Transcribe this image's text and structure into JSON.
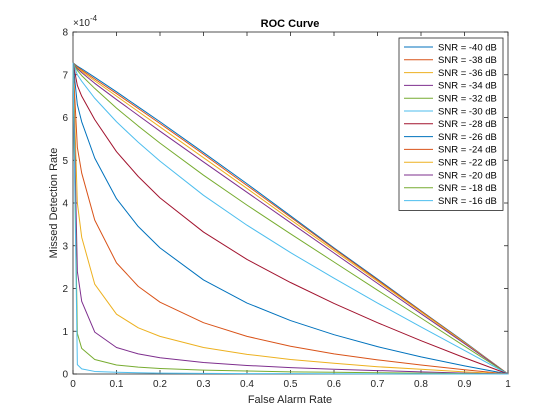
{
  "chart_data": {
    "type": "line",
    "title": "ROC Curve",
    "xlabel": "False Alarm Rate",
    "ylabel": "Missed Detection Rate",
    "y_exponent_label": "×10",
    "y_exponent_power": "-4",
    "xlim": [
      0,
      1
    ],
    "ylim": [
      0,
      8
    ],
    "x_ticks": [
      "0",
      "0.1",
      "0.2",
      "0.3",
      "0.4",
      "0.5",
      "0.6",
      "0.7",
      "0.8",
      "0.9",
      "1"
    ],
    "y_ticks": [
      "0",
      "1",
      "2",
      "3",
      "4",
      "5",
      "6",
      "7",
      "8"
    ],
    "grid": false,
    "legend_position": "top-right",
    "y_scale_note": "y values are in units of 1e-4",
    "x": [
      0,
      0.01,
      0.02,
      0.05,
      0.1,
      0.15,
      0.2,
      0.3,
      0.4,
      0.5,
      0.6,
      0.7,
      0.8,
      0.9,
      1.0
    ],
    "series": [
      {
        "name": "SNR = -40 dB",
        "color": "#0072BD",
        "values": [
          7.28,
          7.2,
          7.14,
          6.94,
          6.6,
          6.25,
          5.9,
          5.18,
          4.45,
          3.7,
          2.95,
          2.22,
          1.48,
          0.75,
          0.0
        ]
      },
      {
        "name": "SNR = -38 dB",
        "color": "#D95319",
        "values": [
          7.28,
          7.18,
          7.11,
          6.9,
          6.56,
          6.21,
          5.86,
          5.14,
          4.41,
          3.67,
          2.93,
          2.2,
          1.47,
          0.74,
          0.0
        ]
      },
      {
        "name": "SNR = -36 dB",
        "color": "#EDB120",
        "values": [
          7.28,
          7.16,
          7.08,
          6.86,
          6.5,
          6.14,
          5.78,
          5.06,
          4.34,
          3.61,
          2.89,
          2.17,
          1.45,
          0.73,
          0.0
        ]
      },
      {
        "name": "SNR = -34 dB",
        "color": "#7E2F8E",
        "values": [
          7.28,
          7.14,
          7.05,
          6.8,
          6.42,
          6.05,
          5.68,
          4.96,
          4.25,
          3.54,
          2.83,
          2.12,
          1.41,
          0.71,
          0.0
        ]
      },
      {
        "name": "SNR = -32 dB",
        "color": "#77AC30",
        "values": [
          7.28,
          7.1,
          6.98,
          6.68,
          6.22,
          5.8,
          5.4,
          4.65,
          3.95,
          3.28,
          2.62,
          1.96,
          1.31,
          0.65,
          0.0
        ]
      },
      {
        "name": "SNR = -30 dB",
        "color": "#4DBEEE",
        "values": [
          7.28,
          7.0,
          6.85,
          6.45,
          5.9,
          5.42,
          4.98,
          4.18,
          3.48,
          2.84,
          2.24,
          1.66,
          1.1,
          0.55,
          0.0
        ]
      },
      {
        "name": "SNR = -28 dB",
        "color": "#A2142F",
        "values": [
          7.28,
          6.75,
          6.5,
          5.95,
          5.2,
          4.62,
          4.12,
          3.32,
          2.68,
          2.14,
          1.65,
          1.2,
          0.78,
          0.38,
          0.0
        ]
      },
      {
        "name": "SNR = -26 dB",
        "color": "#0072BD",
        "values": [
          7.28,
          6.3,
          5.9,
          5.05,
          4.1,
          3.45,
          2.95,
          2.2,
          1.66,
          1.25,
          0.92,
          0.64,
          0.4,
          0.19,
          0.0
        ]
      },
      {
        "name": "SNR = -24 dB",
        "color": "#D95319",
        "values": [
          7.28,
          5.3,
          4.7,
          3.6,
          2.6,
          2.05,
          1.68,
          1.2,
          0.88,
          0.65,
          0.47,
          0.33,
          0.21,
          0.1,
          0.0
        ]
      },
      {
        "name": "SNR = -22 dB",
        "color": "#EDB120",
        "values": [
          7.28,
          4.0,
          3.2,
          2.1,
          1.4,
          1.08,
          0.88,
          0.62,
          0.46,
          0.34,
          0.25,
          0.17,
          0.11,
          0.05,
          0.0
        ]
      },
      {
        "name": "SNR = -20 dB",
        "color": "#7E2F8E",
        "values": [
          7.28,
          2.4,
          1.7,
          0.98,
          0.62,
          0.47,
          0.38,
          0.27,
          0.2,
          0.15,
          0.11,
          0.08,
          0.05,
          0.02,
          0.0
        ]
      },
      {
        "name": "SNR = -18 dB",
        "color": "#77AC30",
        "values": [
          7.28,
          0.95,
          0.6,
          0.34,
          0.21,
          0.16,
          0.13,
          0.09,
          0.07,
          0.05,
          0.04,
          0.03,
          0.02,
          0.01,
          0.0
        ]
      },
      {
        "name": "SNR = -16 dB",
        "color": "#4DBEEE",
        "values": [
          7.28,
          0.22,
          0.12,
          0.06,
          0.04,
          0.03,
          0.02,
          0.015,
          0.01,
          0.008,
          0.006,
          0.004,
          0.003,
          0.001,
          0.0
        ]
      }
    ]
  }
}
